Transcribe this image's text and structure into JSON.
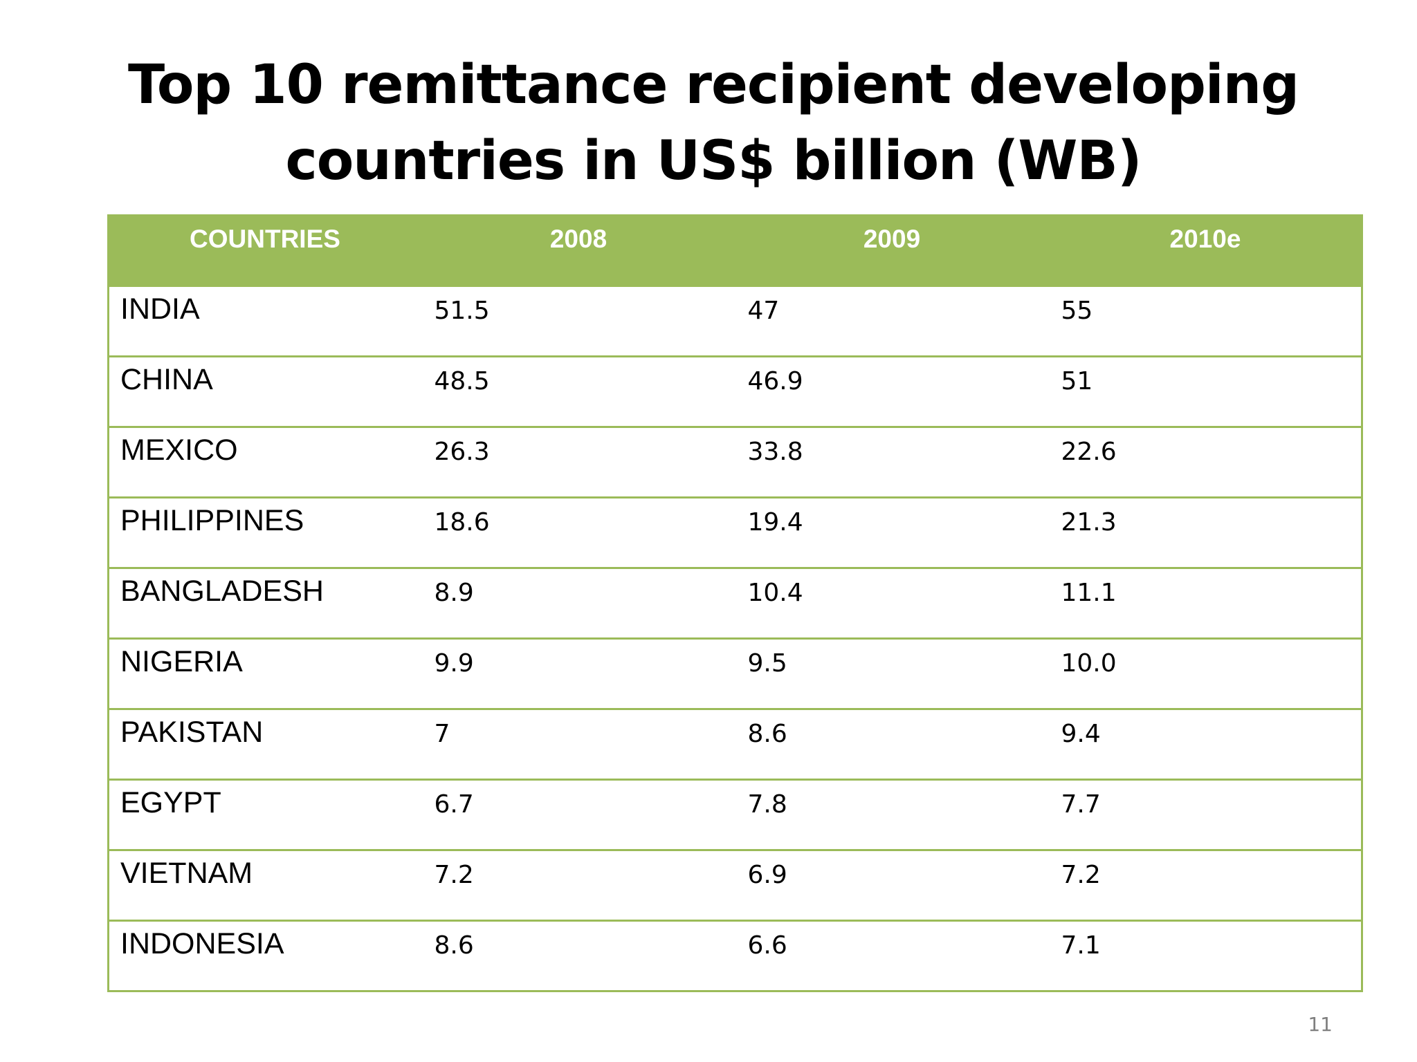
{
  "slide": {
    "title_line1": "Top 10 remittance recipient  developing",
    "title_line2": "countries in US$ billion (WB)",
    "page_number": "11"
  },
  "colors": {
    "header_background": "#9bbb59",
    "header_text": "#ffffff",
    "border": "#9bbb59"
  },
  "table": {
    "columns": [
      "COUNTRIES",
      "2008",
      "2009",
      "2010e"
    ],
    "rows": [
      [
        "INDIA",
        "51.5",
        "47",
        "55"
      ],
      [
        "CHINA",
        "48.5",
        "46.9",
        "51"
      ],
      [
        "MEXICO",
        "26.3",
        "33.8",
        "22.6"
      ],
      [
        "PHILIPPINES",
        "18.6",
        "19.4",
        "21.3"
      ],
      [
        "BANGLADESH",
        "8.9",
        "10.4",
        "11.1"
      ],
      [
        "NIGERIA",
        "9.9",
        "9.5",
        "10.0"
      ],
      [
        "PAKISTAN",
        "7",
        "8.6",
        "9.4"
      ],
      [
        "EGYPT",
        "6.7",
        "7.8",
        "7.7"
      ],
      [
        "VIETNAM",
        "7.2",
        "6.9",
        "7.2"
      ],
      [
        "INDONESIA",
        "8.6",
        "6.6",
        "7.1"
      ]
    ]
  }
}
